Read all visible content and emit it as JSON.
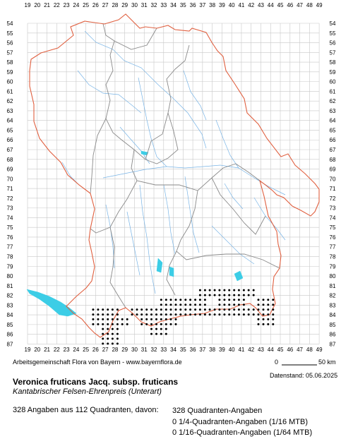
{
  "map": {
    "x_labels": [
      "19",
      "20",
      "21",
      "22",
      "23",
      "24",
      "25",
      "26",
      "27",
      "28",
      "29",
      "30",
      "31",
      "32",
      "33",
      "34",
      "35",
      "36",
      "37",
      "38",
      "39",
      "40",
      "41",
      "42",
      "43",
      "44",
      "45",
      "46",
      "47",
      "48",
      "49"
    ],
    "y_labels": [
      "54",
      "55",
      "56",
      "57",
      "58",
      "59",
      "60",
      "61",
      "62",
      "63",
      "64",
      "65",
      "66",
      "67",
      "68",
      "69",
      "70",
      "71",
      "72",
      "73",
      "74",
      "75",
      "76",
      "77",
      "78",
      "79",
      "80",
      "81",
      "82",
      "83",
      "84",
      "85",
      "86",
      "87"
    ],
    "colors": {
      "grid": "#c8c8c8",
      "border": "#e06040",
      "districts": "#8a8a8a",
      "rivers": "#78b4e6",
      "lakes": "#3ccde6",
      "dots": "#000000"
    }
  },
  "footer": {
    "credit": "Arbeitsgemeinschaft Flora von Bayern - www.bayernflora.de",
    "scale_start": "0",
    "scale_end": "50 km",
    "date": "Datenstand: 05.06.2025"
  },
  "species": {
    "scientific_name": "Veronica fruticans Jacq. subsp. fruticans",
    "common_name": "Kantabrischer Felsen-Ehrenpreis (Unterart)"
  },
  "summary": {
    "total": "328 Angaben aus 112 Quadranten, davon:",
    "stats": [
      "328 Quadranten-Angaben",
      "0 1/4-Quadranten-Angaben (1/16 MTB)",
      "0 1/16-Quadranten-Angaben (1/64 MTB)"
    ]
  }
}
